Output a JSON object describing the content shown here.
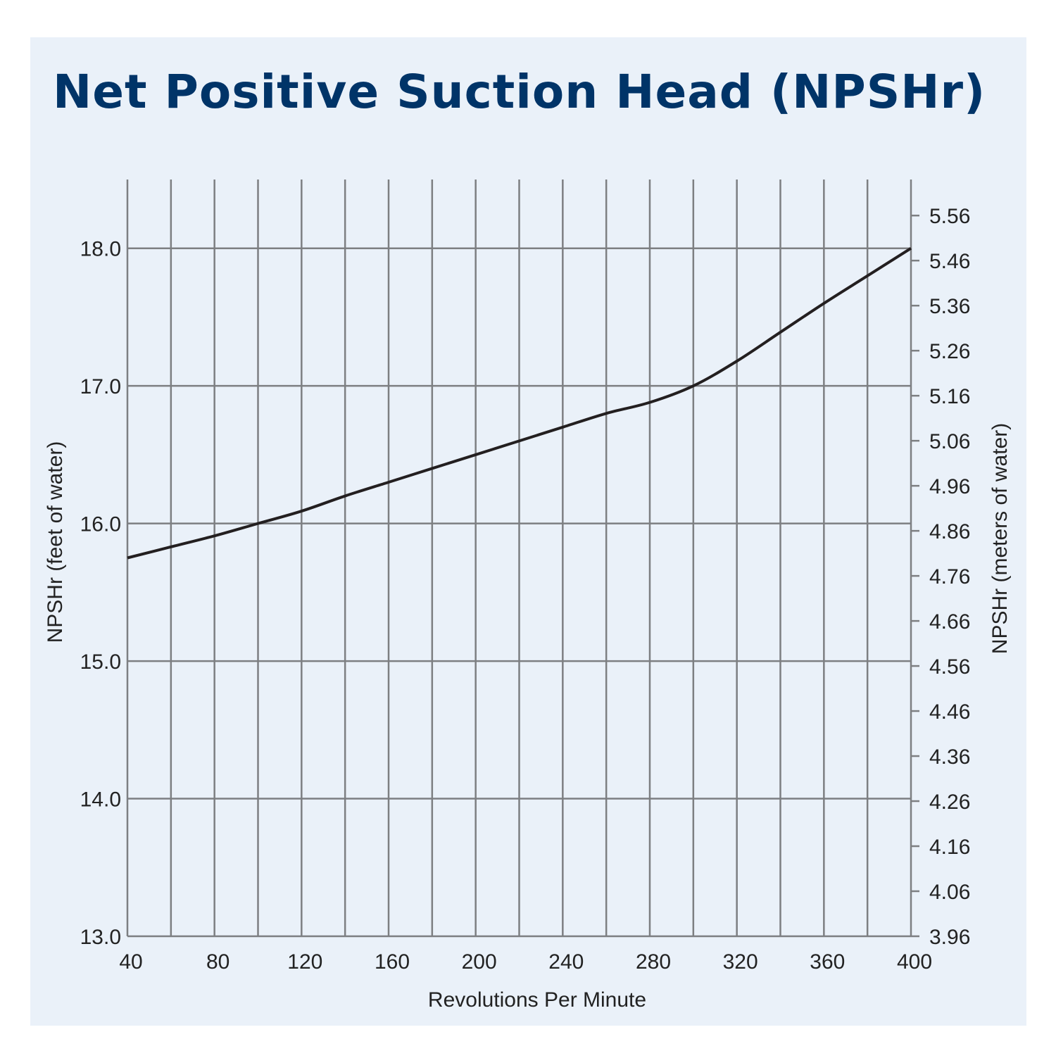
{
  "chart_data": {
    "type": "line",
    "title": "Net Positive Suction Head (NPSHr)",
    "xlabel": "Revolutions Per Minute",
    "ylabel": "NPSHr (feet of water)",
    "y2label": "NPSHr (meters of water)",
    "xlim": [
      40,
      400
    ],
    "ylim": [
      13.0,
      18.5
    ],
    "y2lim": [
      3.96,
      5.64
    ],
    "grid": true,
    "x_ticks": [
      "40",
      "80",
      "120",
      "160",
      "200",
      "240",
      "280",
      "320",
      "360",
      "400"
    ],
    "y_ticks": [
      "13.0",
      "14.0",
      "15.0",
      "16.0",
      "17.0",
      "18.0"
    ],
    "y2_ticks": [
      "3.96",
      "4.06",
      "4.16",
      "4.26",
      "4.36",
      "4.46",
      "4.56",
      "4.66",
      "4.76",
      "4.86",
      "4.96",
      "5.06",
      "5.16",
      "5.26",
      "5.36",
      "5.46",
      "5.56"
    ],
    "line_color": "#231f20",
    "title_color": "#003468",
    "background_color": "#eaf1f9",
    "x": [
      40,
      60,
      80,
      100,
      120,
      140,
      160,
      180,
      200,
      220,
      240,
      260,
      280,
      300,
      320,
      340,
      360,
      380,
      400
    ],
    "values": [
      15.75,
      15.83,
      15.91,
      16.0,
      16.09,
      16.2,
      16.3,
      16.4,
      16.5,
      16.6,
      16.7,
      16.8,
      16.88,
      17.0,
      17.18,
      17.39,
      17.6,
      17.8,
      18.0
    ]
  }
}
